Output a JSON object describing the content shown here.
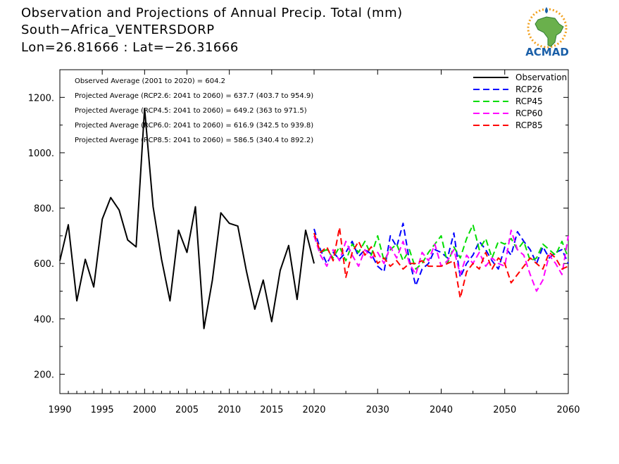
{
  "title": {
    "line1": "Observation and Projections of Annual Precip. Total (mm)",
    "line2": "South−Africa_VENTERSDORP",
    "line3": "Lon=26.81666 : Lat=−26.31666"
  },
  "logo": {
    "text": "ACMAD",
    "icon": "africa-map-logo-icon"
  },
  "colors": {
    "observation": "#000000",
    "rcp26": "#0000ff",
    "rcp45": "#00dd00",
    "rcp60": "#ff00ff",
    "rcp85": "#ff0000",
    "logo_text": "#1a5fa8",
    "logo_land": "#6ab04c",
    "logo_sun": "#f2a01c"
  },
  "annotations": [
    "Observed Average (2001 to 2020) = 604.2",
    "Projected Average (RCP2.6: 2041 to 2060) = 637.7 (403.7 to 954.9)",
    "Projected Average (RCP4.5: 2041 to 2060) = 649.2 (363 to 971.5)",
    "Projected Average (RCP6.0: 2041 to 2060) = 616.9 (342.5 to 939.8)",
    "Projected Average (RCP8.5: 2041 to 2060) = 586.5 (340.4 to 892.2)"
  ],
  "chart_data": {
    "type": "line",
    "title": "Observation and Projections of Annual Precip. Total (mm)",
    "xlabel": "",
    "ylabel": "",
    "xlim": [
      1990,
      2060
    ],
    "ylim": [
      130,
      1300
    ],
    "x_ticks": [
      1990,
      1995,
      2000,
      2005,
      2010,
      2015,
      2020,
      2030,
      2040,
      2050,
      2060
    ],
    "x_tick_labels": [
      "1990",
      "1995",
      "2000",
      "2005",
      "2010",
      "2015",
      "2020",
      "2030",
      "2040",
      "2050",
      "2060"
    ],
    "y_ticks": [
      200,
      400,
      600,
      800,
      1000,
      1200
    ],
    "y_tick_labels": [
      "200.",
      "400.",
      "600.",
      "800.",
      "1000.",
      "1200."
    ],
    "legend_position": "top-right",
    "series": [
      {
        "name": "Observation",
        "style": "solid",
        "color": "#000000",
        "x": [
          1990,
          1991,
          1992,
          1993,
          1994,
          1995,
          1996,
          1997,
          1998,
          1999,
          2000,
          2001,
          2002,
          2003,
          2004,
          2005,
          2006,
          2007,
          2008,
          2009,
          2010,
          2011,
          2012,
          2013,
          2014,
          2015,
          2016,
          2017,
          2018,
          2019,
          2020
        ],
        "y": [
          610,
          740,
          465,
          615,
          515,
          760,
          838,
          793,
          685,
          660,
          1160,
          805,
          615,
          465,
          720,
          640,
          805,
          365,
          540,
          783,
          745,
          735,
          575,
          435,
          540,
          390,
          575,
          665,
          470,
          720,
          600
        ]
      },
      {
        "name": "RCP26",
        "style": "dashed",
        "color": "#0000ff",
        "x": [
          2020,
          2021,
          2022,
          2023,
          2024,
          2025,
          2026,
          2027,
          2028,
          2029,
          2030,
          2031,
          2032,
          2033,
          2034,
          2035,
          2036,
          2037,
          2038,
          2039,
          2040,
          2041,
          2042,
          2043,
          2044,
          2045,
          2046,
          2047,
          2048,
          2049,
          2050,
          2051,
          2052,
          2053,
          2054,
          2055,
          2056,
          2057,
          2058,
          2059,
          2060
        ],
        "y": [
          725,
          650,
          600,
          640,
          615,
          640,
          680,
          625,
          650,
          635,
          590,
          570,
          700,
          660,
          745,
          610,
          520,
          580,
          600,
          650,
          640,
          620,
          710,
          550,
          600,
          630,
          680,
          650,
          610,
          580,
          660,
          630,
          715,
          680,
          650,
          600,
          660,
          620,
          640,
          650,
          600
        ]
      },
      {
        "name": "RCP45",
        "style": "dashed",
        "color": "#00dd00",
        "x": [
          2020,
          2021,
          2022,
          2023,
          2024,
          2025,
          2026,
          2027,
          2028,
          2029,
          2030,
          2031,
          2032,
          2033,
          2034,
          2035,
          2036,
          2037,
          2038,
          2039,
          2040,
          2041,
          2042,
          2043,
          2044,
          2045,
          2046,
          2047,
          2048,
          2049,
          2050,
          2051,
          2052,
          2053,
          2054,
          2055,
          2056,
          2057,
          2058,
          2059,
          2060
        ],
        "y": [
          700,
          640,
          650,
          620,
          660,
          610,
          670,
          640,
          680,
          630,
          700,
          610,
          650,
          670,
          610,
          650,
          580,
          600,
          640,
          670,
          700,
          600,
          660,
          620,
          690,
          740,
          650,
          690,
          620,
          680,
          670,
          690,
          650,
          680,
          610,
          620,
          670,
          650,
          630,
          680,
          620
        ]
      },
      {
        "name": "RCP60",
        "style": "dashed",
        "color": "#ff00ff",
        "x": [
          2020,
          2021,
          2022,
          2023,
          2024,
          2025,
          2026,
          2027,
          2028,
          2029,
          2030,
          2031,
          2032,
          2033,
          2034,
          2035,
          2036,
          2037,
          2038,
          2039,
          2040,
          2041,
          2042,
          2043,
          2044,
          2045,
          2046,
          2047,
          2048,
          2049,
          2050,
          2051,
          2052,
          2053,
          2054,
          2055,
          2056,
          2057,
          2058,
          2059,
          2060
        ],
        "y": [
          700,
          630,
          590,
          650,
          610,
          680,
          630,
          590,
          650,
          620,
          640,
          600,
          660,
          620,
          680,
          600,
          560,
          640,
          610,
          670,
          590,
          610,
          650,
          560,
          630,
          600,
          640,
          590,
          620,
          600,
          590,
          720,
          650,
          630,
          560,
          500,
          540,
          630,
          600,
          560,
          700
        ]
      },
      {
        "name": "RCP85",
        "style": "dashed",
        "color": "#ff0000",
        "x": [
          2020,
          2021,
          2022,
          2023,
          2024,
          2025,
          2026,
          2027,
          2028,
          2029,
          2030,
          2031,
          2032,
          2033,
          2034,
          2035,
          2036,
          2037,
          2038,
          2039,
          2040,
          2041,
          2042,
          2043,
          2044,
          2045,
          2046,
          2047,
          2048,
          2049,
          2050,
          2051,
          2052,
          2053,
          2054,
          2055,
          2056,
          2057,
          2058,
          2059,
          2060
        ],
        "y": [
          710,
          640,
          660,
          610,
          730,
          550,
          640,
          680,
          630,
          660,
          600,
          620,
          590,
          610,
          580,
          600,
          600,
          610,
          590,
          590,
          590,
          600,
          610,
          475,
          570,
          600,
          580,
          640,
          580,
          620,
          600,
          530,
          560,
          590,
          620,
          600,
          580,
          640,
          620,
          580,
          590
        ]
      }
    ]
  }
}
